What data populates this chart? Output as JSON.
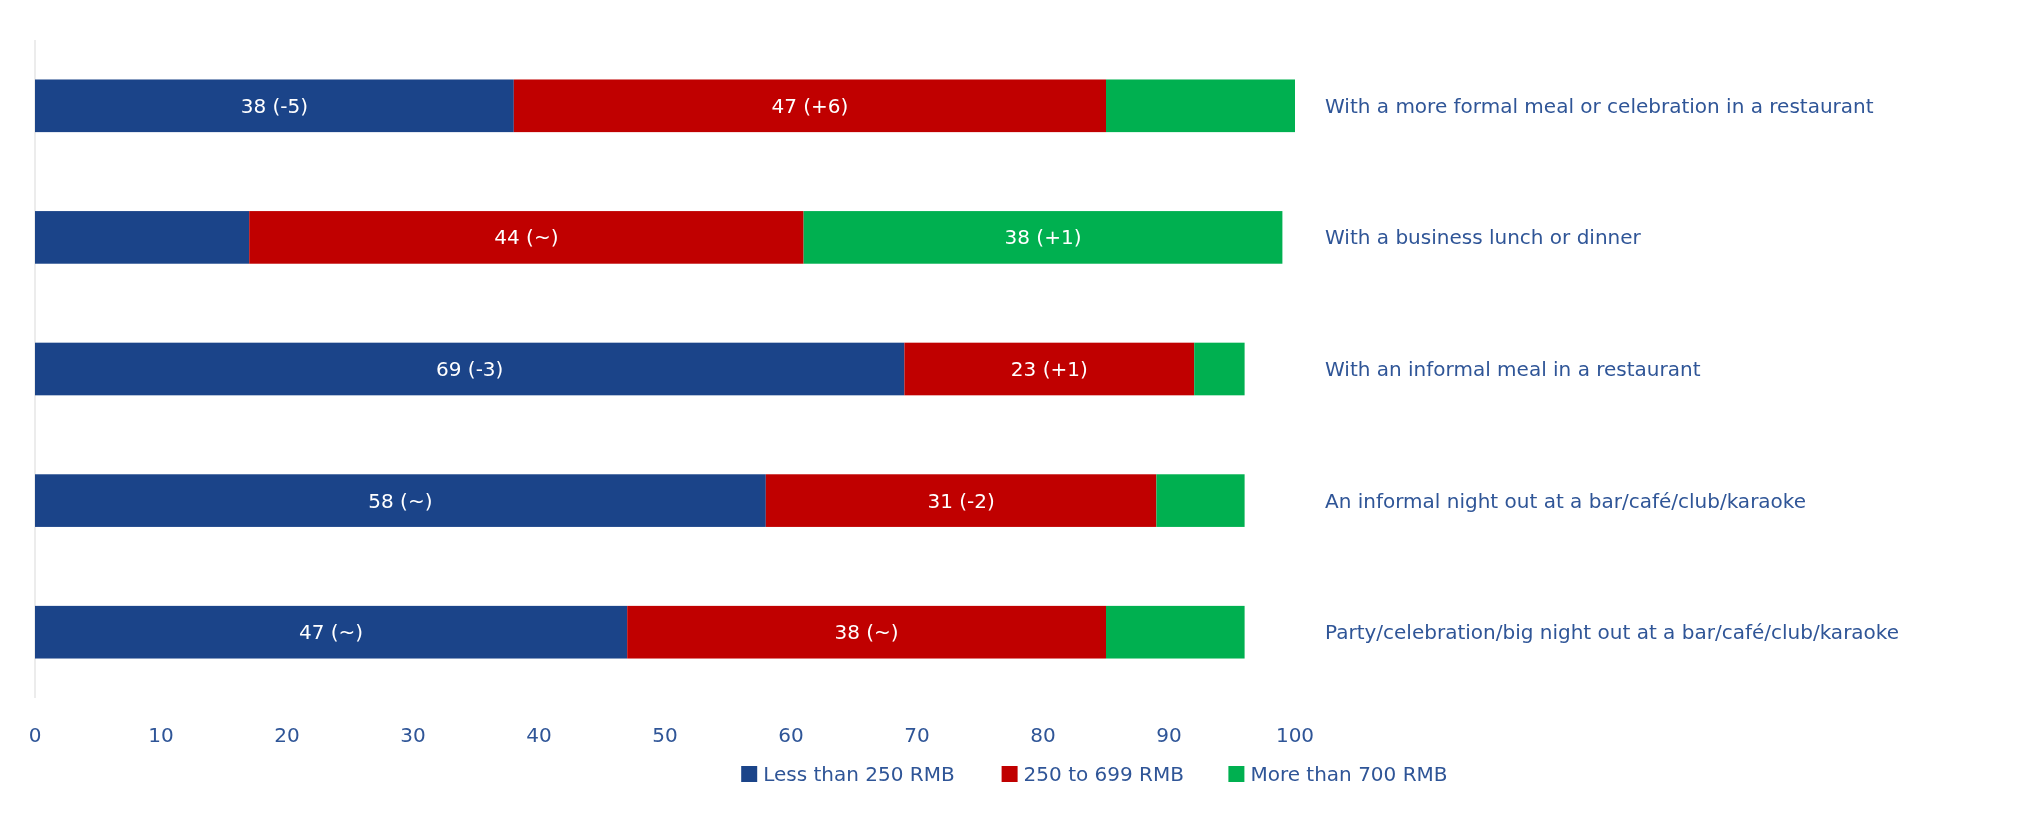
{
  "chart_data": {
    "type": "bar",
    "orientation": "horizontal",
    "stacked": true,
    "categories": [
      "With a more formal meal or celebration in a restaurant",
      "With a business lunch or dinner",
      "With an informal meal in a restaurant",
      "An informal night out at a bar/café/club/karaoke",
      "Party/celebration/big night out at a bar/café/club/karaoke"
    ],
    "series": [
      {
        "name": "Less than 250 RMB",
        "color": "#1b4489",
        "values": [
          38,
          17,
          69,
          58,
          47
        ],
        "value_labels": [
          "38 (-5)",
          null,
          "69 (-3)",
          "58 (~)",
          "47 (~)"
        ]
      },
      {
        "name": "250 to 699 RMB",
        "color": "#c00000",
        "values": [
          47,
          44,
          23,
          31,
          38
        ],
        "value_labels": [
          "47 (+6)",
          "44 (~)",
          "23 (+1)",
          "31 (-2)",
          "38 (~)"
        ]
      },
      {
        "name": "More than 700 RMB",
        "color": "#00b050",
        "values": [
          15,
          38,
          4,
          7,
          11
        ],
        "value_labels": [
          null,
          "38 (+1)",
          null,
          null,
          null
        ]
      }
    ],
    "xlim": [
      0,
      100
    ],
    "xticks": [
      0,
      10,
      20,
      30,
      40,
      50,
      60,
      70,
      80,
      90,
      100
    ],
    "grid": false,
    "legend": "bottom"
  }
}
